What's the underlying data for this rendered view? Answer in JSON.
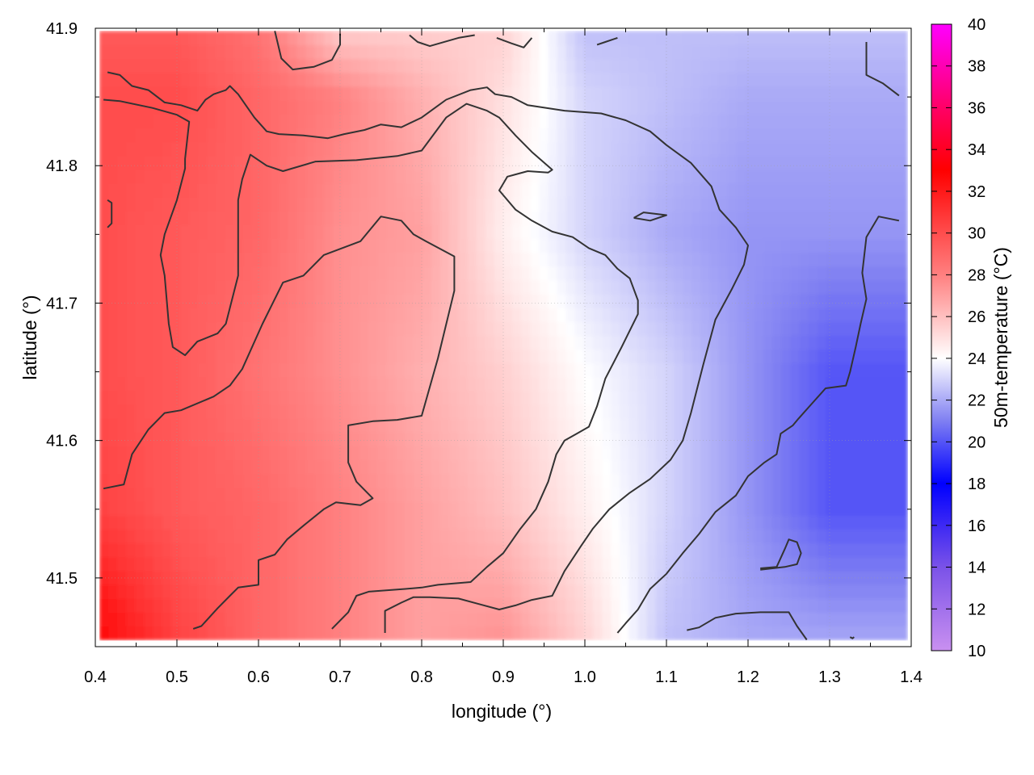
{
  "chart_data": {
    "type": "heatmap",
    "title": "",
    "xlabel": "longitude (°)",
    "ylabel": "latitude (°)",
    "colorbar_label": "50m-temperature (°C)",
    "xlim": [
      0.4,
      1.4
    ],
    "ylim": [
      41.45,
      41.9
    ],
    "data_extent": {
      "x": [
        0.405,
        1.395
      ],
      "y": [
        41.455,
        41.898
      ]
    },
    "xticks": [
      0.4,
      0.5,
      0.6,
      0.7,
      0.8,
      0.9,
      1.0,
      1.1,
      1.2,
      1.3,
      1.4
    ],
    "yticks": [
      41.5,
      41.6,
      41.7,
      41.8,
      41.9
    ],
    "xtick_labels": [
      "0.4",
      "0.5",
      "0.6",
      "0.7",
      "0.8",
      "0.9",
      "1.0",
      "1.1",
      "1.2",
      "1.3",
      "1.4"
    ],
    "ytick_labels": [
      "41.5",
      "41.6",
      "41.7",
      "41.8",
      "41.9"
    ],
    "grid": true,
    "colorbar": {
      "range": [
        10,
        40
      ],
      "ticks": [
        10,
        12,
        14,
        16,
        18,
        20,
        22,
        24,
        26,
        28,
        30,
        32,
        34,
        36,
        38,
        40
      ],
      "tick_labels": [
        "10",
        "12",
        "14",
        "16",
        "18",
        "20",
        "22",
        "24",
        "26",
        "28",
        "30",
        "32",
        "34",
        "36",
        "38",
        "40"
      ],
      "stops": [
        {
          "value": 10,
          "color": "#c990f0"
        },
        {
          "value": 14,
          "color": "#7a52e8"
        },
        {
          "value": 18,
          "color": "#0000ff"
        },
        {
          "value": 21,
          "color": "#7f7ff2"
        },
        {
          "value": 24,
          "color": "#ffffff"
        },
        {
          "value": 28,
          "color": "#ff8080"
        },
        {
          "value": 33,
          "color": "#ff0000"
        },
        {
          "value": 36,
          "color": "#ff0066"
        },
        {
          "value": 40,
          "color": "#ff00ff"
        }
      ]
    },
    "grid_values": {
      "x": [
        0.4,
        0.5,
        0.6,
        0.7,
        0.8,
        0.9,
        1.0,
        1.1,
        1.2,
        1.3,
        1.4
      ],
      "y": [
        41.45,
        41.55,
        41.65,
        41.75,
        41.85,
        41.9
      ],
      "z": [
        [
          33.0,
          30.5,
          29.0,
          28.0,
          27.0,
          27.5,
          25.5,
          22.5,
          22.0,
          22.0,
          22.0
        ],
        [
          30.5,
          29.5,
          29.0,
          28.0,
          27.0,
          26.0,
          24.5,
          23.0,
          21.5,
          20.0,
          20.0
        ],
        [
          30.0,
          29.5,
          28.5,
          27.5,
          26.5,
          25.5,
          24.0,
          23.0,
          21.5,
          20.0,
          20.0
        ],
        [
          30.0,
          29.5,
          29.0,
          27.5,
          27.0,
          24.5,
          23.0,
          22.0,
          21.5,
          21.5,
          21.5
        ],
        [
          30.0,
          30.0,
          29.0,
          28.0,
          26.5,
          25.0,
          23.0,
          22.5,
          22.0,
          22.0,
          22.0
        ],
        [
          29.5,
          29.5,
          28.5,
          25.5,
          25.5,
          25.5,
          22.5,
          22.5,
          22.5,
          22.5,
          22.5
        ]
      ]
    },
    "contours": [
      [
        [
          0.41,
          41.565
        ],
        [
          0.435,
          41.568
        ],
        [
          0.445,
          41.59
        ],
        [
          0.465,
          41.608
        ],
        [
          0.485,
          41.62
        ],
        [
          0.505,
          41.622
        ],
        [
          0.545,
          41.632
        ],
        [
          0.565,
          41.64
        ],
        [
          0.58,
          41.652
        ],
        [
          0.605,
          41.685
        ],
        [
          0.63,
          41.715
        ],
        [
          0.655,
          41.72
        ],
        [
          0.68,
          41.735
        ],
        [
          0.725,
          41.745
        ],
        [
          0.75,
          41.763
        ],
        [
          0.775,
          41.76
        ],
        [
          0.79,
          41.75
        ],
        [
          0.805,
          41.745
        ],
        [
          0.84,
          41.734
        ],
        [
          0.84,
          41.709
        ],
        [
          0.82,
          41.66
        ],
        [
          0.8,
          41.618
        ],
        [
          0.77,
          41.615
        ],
        [
          0.74,
          41.614
        ],
        [
          0.71,
          41.611
        ],
        [
          0.71,
          41.584
        ],
        [
          0.72,
          41.57
        ],
        [
          0.74,
          41.558
        ],
        [
          0.725,
          41.553
        ],
        [
          0.695,
          41.555
        ],
        [
          0.68,
          41.55
        ],
        [
          0.655,
          41.538
        ],
        [
          0.635,
          41.528
        ],
        [
          0.62,
          41.517
        ],
        [
          0.6,
          41.513
        ],
        [
          0.6,
          41.506
        ],
        [
          0.6,
          41.495
        ],
        [
          0.575,
          41.493
        ],
        [
          0.565,
          41.487
        ],
        [
          0.55,
          41.478
        ],
        [
          0.53,
          41.465
        ],
        [
          0.52,
          41.463
        ]
      ],
      [
        [
          0.41,
          41.848
        ],
        [
          0.43,
          41.847
        ],
        [
          0.47,
          41.842
        ],
        [
          0.5,
          41.837
        ],
        [
          0.515,
          41.832
        ],
        [
          0.51,
          41.805
        ],
        [
          0.51,
          41.798
        ],
        [
          0.5,
          41.775
        ],
        [
          0.485,
          41.75
        ],
        [
          0.48,
          41.735
        ],
        [
          0.485,
          41.72
        ],
        [
          0.49,
          41.685
        ],
        [
          0.495,
          41.668
        ],
        [
          0.51,
          41.662
        ],
        [
          0.525,
          41.672
        ],
        [
          0.55,
          41.678
        ],
        [
          0.56,
          41.685
        ],
        [
          0.575,
          41.72
        ],
        [
          0.575,
          41.775
        ],
        [
          0.58,
          41.79
        ],
        [
          0.59,
          41.808
        ],
        [
          0.61,
          41.8
        ],
        [
          0.63,
          41.796
        ],
        [
          0.67,
          41.803
        ],
        [
          0.72,
          41.804
        ],
        [
          0.77,
          41.807
        ],
        [
          0.8,
          41.811
        ],
        [
          0.83,
          41.835
        ],
        [
          0.855,
          41.845
        ],
        [
          0.88,
          41.84
        ],
        [
          0.895,
          41.835
        ],
        [
          0.915,
          41.822
        ],
        [
          0.935,
          41.81
        ],
        [
          0.96,
          41.797
        ],
        [
          0.955,
          41.795
        ],
        [
          0.93,
          41.796
        ],
        [
          0.905,
          41.792
        ],
        [
          0.895,
          41.782
        ],
        [
          0.915,
          41.768
        ],
        [
          0.935,
          41.76
        ],
        [
          0.96,
          41.752
        ],
        [
          0.985,
          41.748
        ],
        [
          1.005,
          41.74
        ],
        [
          1.025,
          41.735
        ],
        [
          1.04,
          41.725
        ],
        [
          1.055,
          41.718
        ],
        [
          1.065,
          41.702
        ],
        [
          1.065,
          41.692
        ],
        [
          1.045,
          41.668
        ],
        [
          1.025,
          41.645
        ],
        [
          1.015,
          41.625
        ],
        [
          1.005,
          41.61
        ],
        [
          0.99,
          41.605
        ],
        [
          0.975,
          41.6
        ],
        [
          0.965,
          41.59
        ],
        [
          0.955,
          41.57
        ],
        [
          0.94,
          41.55
        ],
        [
          0.92,
          41.535
        ],
        [
          0.9,
          41.518
        ],
        [
          0.88,
          41.508
        ],
        [
          0.86,
          41.497
        ],
        [
          0.82,
          41.495
        ],
        [
          0.8,
          41.493
        ],
        [
          0.78,
          41.492
        ],
        [
          0.735,
          41.49
        ],
        [
          0.72,
          41.487
        ],
        [
          0.71,
          41.475
        ],
        [
          0.69,
          41.463
        ]
      ],
      [
        [
          0.415,
          41.868
        ],
        [
          0.43,
          41.866
        ],
        [
          0.445,
          41.858
        ],
        [
          0.465,
          41.855
        ],
        [
          0.485,
          41.846
        ],
        [
          0.505,
          41.844
        ],
        [
          0.525,
          41.84
        ],
        [
          0.535,
          41.848
        ],
        [
          0.545,
          41.852
        ],
        [
          0.56,
          41.855
        ],
        [
          0.565,
          41.858
        ],
        [
          0.575,
          41.852
        ],
        [
          0.595,
          41.835
        ],
        [
          0.61,
          41.825
        ],
        [
          0.625,
          41.823
        ],
        [
          0.655,
          41.822
        ],
        [
          0.685,
          41.82
        ],
        [
          0.705,
          41.823
        ],
        [
          0.73,
          41.826
        ],
        [
          0.75,
          41.83
        ],
        [
          0.775,
          41.828
        ],
        [
          0.8,
          41.835
        ],
        [
          0.83,
          41.848
        ],
        [
          0.86,
          41.855
        ],
        [
          0.88,
          41.857
        ],
        [
          0.89,
          41.852
        ],
        [
          0.91,
          41.85
        ],
        [
          0.93,
          41.844
        ],
        [
          0.975,
          41.84
        ],
        [
          1.02,
          41.838
        ],
        [
          1.05,
          41.833
        ],
        [
          1.08,
          41.825
        ],
        [
          1.1,
          41.815
        ],
        [
          1.13,
          41.802
        ],
        [
          1.155,
          41.785
        ],
        [
          1.165,
          41.768
        ],
        [
          1.185,
          41.755
        ],
        [
          1.2,
          41.742
        ],
        [
          1.195,
          41.728
        ],
        [
          1.18,
          41.71
        ],
        [
          1.16,
          41.688
        ],
        [
          1.145,
          41.655
        ],
        [
          1.13,
          41.62
        ],
        [
          1.12,
          41.6
        ],
        [
          1.105,
          41.586
        ],
        [
          1.08,
          41.572
        ],
        [
          1.055,
          41.562
        ],
        [
          1.03,
          41.55
        ],
        [
          1.01,
          41.536
        ],
        [
          0.995,
          41.523
        ],
        [
          0.975,
          41.505
        ],
        [
          0.96,
          41.487
        ],
        [
          0.935,
          41.484
        ],
        [
          0.915,
          41.48
        ],
        [
          0.895,
          41.477
        ],
        [
          0.87,
          41.481
        ],
        [
          0.845,
          41.485
        ],
        [
          0.81,
          41.486
        ],
        [
          0.79,
          41.486
        ],
        [
          0.775,
          41.482
        ],
        [
          0.755,
          41.476
        ],
        [
          0.755,
          41.46
        ]
      ],
      [
        [
          0.415,
          41.775
        ],
        [
          0.42,
          41.773
        ],
        [
          0.42,
          41.758
        ],
        [
          0.415,
          41.755
        ]
      ],
      [
        [
          0.62,
          41.898
        ],
        [
          0.628,
          41.878
        ],
        [
          0.642,
          41.87
        ],
        [
          0.668,
          41.872
        ],
        [
          0.69,
          41.877
        ],
        [
          0.7,
          41.888
        ],
        [
          0.7,
          41.896
        ]
      ],
      [
        [
          0.785,
          41.895
        ],
        [
          0.795,
          41.89
        ],
        [
          0.81,
          41.887
        ],
        [
          0.845,
          41.893
        ],
        [
          0.865,
          41.895
        ]
      ],
      [
        [
          0.892,
          41.893
        ],
        [
          0.91,
          41.889
        ],
        [
          0.925,
          41.886
        ],
        [
          0.935,
          41.893
        ]
      ],
      [
        [
          1.015,
          41.888
        ],
        [
          1.025,
          41.89
        ],
        [
          1.04,
          41.893
        ]
      ],
      [
        [
          1.06,
          41.762
        ],
        [
          1.08,
          41.76
        ],
        [
          1.1,
          41.764
        ],
        [
          1.072,
          41.766
        ],
        [
          1.06,
          41.762
        ]
      ],
      [
        [
          1.345,
          41.89
        ],
        [
          1.345,
          41.866
        ],
        [
          1.365,
          41.86
        ],
        [
          1.385,
          41.851
        ]
      ],
      [
        [
          1.385,
          41.76
        ],
        [
          1.36,
          41.763
        ],
        [
          1.345,
          41.748
        ],
        [
          1.34,
          41.722
        ],
        [
          1.345,
          41.703
        ],
        [
          1.338,
          41.685
        ],
        [
          1.332,
          41.668
        ],
        [
          1.325,
          41.65
        ],
        [
          1.32,
          41.64
        ],
        [
          1.295,
          41.638
        ],
        [
          1.28,
          41.628
        ],
        [
          1.262,
          41.616
        ],
        [
          1.255,
          41.611
        ],
        [
          1.24,
          41.605
        ],
        [
          1.235,
          41.59
        ],
        [
          1.22,
          41.584
        ],
        [
          1.2,
          41.574
        ],
        [
          1.185,
          41.56
        ],
        [
          1.16,
          41.548
        ],
        [
          1.14,
          41.532
        ],
        [
          1.12,
          41.518
        ],
        [
          1.1,
          41.503
        ],
        [
          1.08,
          41.492
        ],
        [
          1.065,
          41.477
        ],
        [
          1.05,
          41.467
        ],
        [
          1.04,
          41.46
        ]
      ],
      [
        [
          1.215,
          41.506
        ],
        [
          1.245,
          41.508
        ],
        [
          1.26,
          41.51
        ],
        [
          1.265,
          41.518
        ],
        [
          1.26,
          41.526
        ],
        [
          1.25,
          41.528
        ],
        [
          1.245,
          41.521
        ],
        [
          1.235,
          41.508
        ],
        [
          1.215,
          41.507
        ]
      ],
      [
        [
          1.125,
          41.462
        ],
        [
          1.14,
          41.464
        ],
        [
          1.16,
          41.471
        ],
        [
          1.185,
          41.474
        ],
        [
          1.215,
          41.475
        ],
        [
          1.25,
          41.475
        ],
        [
          1.26,
          41.465
        ],
        [
          1.272,
          41.455
        ]
      ],
      [
        [
          1.325,
          41.457
        ],
        [
          1.328,
          41.456
        ],
        [
          1.33,
          41.457
        ]
      ]
    ]
  }
}
